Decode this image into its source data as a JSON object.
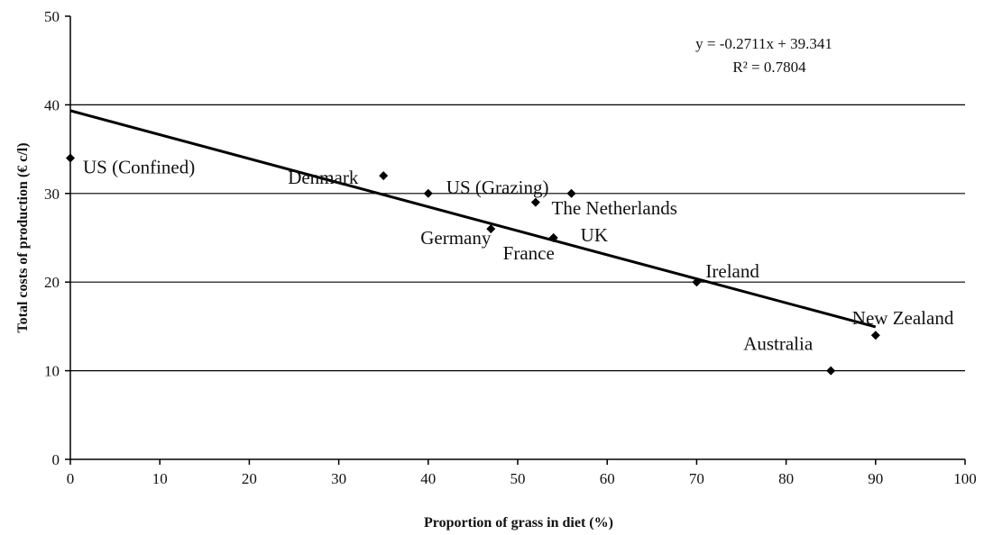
{
  "chart_data": {
    "type": "scatter",
    "xlabel": "Proportion of grass in diet (%)",
    "ylabel": "Total costs of production (€ c/l)",
    "xlim": [
      0,
      100
    ],
    "ylim": [
      0,
      50
    ],
    "xticks": [
      0,
      10,
      20,
      30,
      40,
      50,
      60,
      70,
      80,
      90,
      100
    ],
    "yticks": [
      0,
      10,
      20,
      30,
      40,
      50
    ],
    "grid": "horizontal",
    "points": [
      {
        "label": "US (Confined)",
        "x": 0,
        "y": 34
      },
      {
        "label": "Denmark",
        "x": 35,
        "y": 32
      },
      {
        "label": "US (Grazing)",
        "x": 40,
        "y": 30
      },
      {
        "label": "",
        "x": 52,
        "y": 29
      },
      {
        "label": "The Netherlands",
        "x": 56,
        "y": 30
      },
      {
        "label": "Germany",
        "x": 47,
        "y": 26
      },
      {
        "label": "UK",
        "x": 54,
        "y": 25
      },
      {
        "label": "France",
        "x": 54,
        "y": 25
      },
      {
        "label": "Ireland",
        "x": 70,
        "y": 20
      },
      {
        "label": "New Zealand",
        "x": 90,
        "y": 14
      },
      {
        "label": "Australia",
        "x": 85,
        "y": 10
      }
    ],
    "trendline": {
      "slope": -0.2711,
      "intercept": 39.341,
      "x_range": [
        0,
        90
      ]
    },
    "annotations": {
      "equation": "y = -0.2711x + 39.341",
      "r_squared": "R² = 0.7804"
    }
  }
}
